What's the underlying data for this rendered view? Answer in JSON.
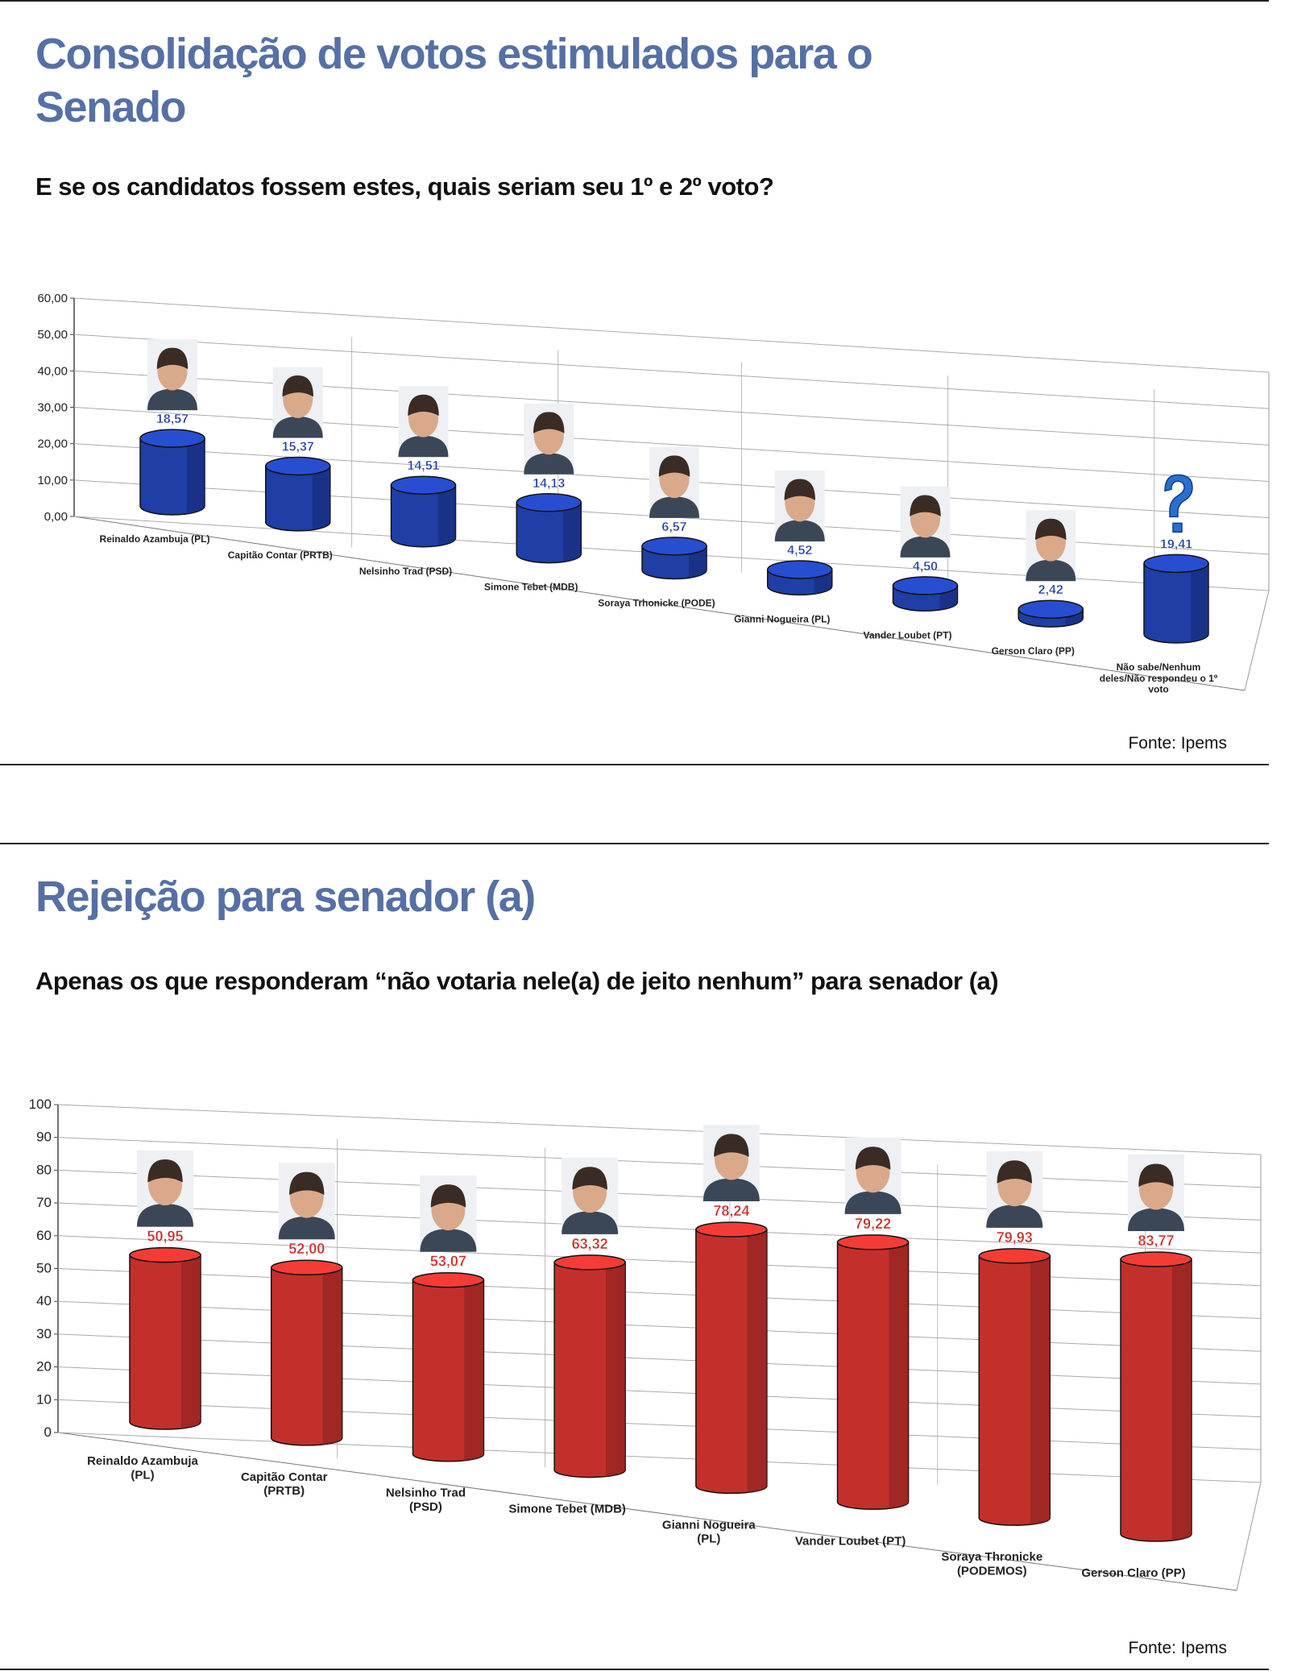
{
  "chart_data": [
    {
      "type": "bar",
      "title": "Consolidação de votos estimulados para o Senado",
      "subtitle": "E se os candidatos fossem estes, quais seriam seu 1º e 2º voto?",
      "source": "Fonte: Ipems",
      "categories": [
        "Reinaldo Azambuja (PL)",
        "Capitão Contar (PRTB)",
        "Nelsinho Trad (PSD)",
        "Simone Tebet (MDB)",
        "Soraya Trhonicke (PODE)",
        "Gianni Nogueira (PL)",
        "Vander Loubet (PT)",
        "Gerson Claro (PP)",
        "Não sabe/Nenhum deles/Não respondeu o 1º voto"
      ],
      "values": [
        18.57,
        15.37,
        14.51,
        14.13,
        6.57,
        4.52,
        4.5,
        2.42,
        19.41
      ],
      "value_labels": [
        "18,57",
        "15,37",
        "14,51",
        "14,13",
        "6,57",
        "4,52",
        "4,50",
        "2,42",
        "19,41"
      ],
      "color": "#1f3ea6",
      "ylim": [
        0,
        60
      ],
      "yticks": [
        {
          "value": 0,
          "label": "0,00"
        },
        {
          "value": 10,
          "label": "10,00"
        },
        {
          "value": 20,
          "label": "20,00"
        },
        {
          "value": 30,
          "label": "30,00"
        },
        {
          "value": 40,
          "label": "40,00"
        },
        {
          "value": 50,
          "label": "50,00"
        },
        {
          "value": 60,
          "label": "60,00"
        }
      ],
      "grid": true
    },
    {
      "type": "bar",
      "title": "Rejeição para senador (a)",
      "subtitle": "Apenas os que responderam “não votaria nele(a) de jeito nenhum” para senador (a)",
      "source": "Fonte: Ipems",
      "categories": [
        "Reinaldo Azambuja (PL)",
        "Capitão Contar (PRTB)",
        "Nelsinho Trad (PSD)",
        "Simone Tebet (MDB)",
        "Gianni Nogueira (PL)",
        "Vander Loubet (PT)",
        "Soraya Thronicke (PODEMOS)",
        "Gerson Claro (PP)"
      ],
      "values": [
        50.95,
        52.0,
        53.07,
        63.32,
        78.24,
        79.22,
        79.93,
        83.77
      ],
      "value_labels": [
        "50,95",
        "52,00",
        "53,07",
        "63,32",
        "78,24",
        "79,22",
        "79,93",
        "83,77"
      ],
      "color": "#c3302b",
      "ylim": [
        0,
        100
      ],
      "yticks": [
        0,
        10,
        20,
        30,
        40,
        50,
        60,
        70,
        80,
        90,
        100
      ],
      "grid": true
    }
  ]
}
